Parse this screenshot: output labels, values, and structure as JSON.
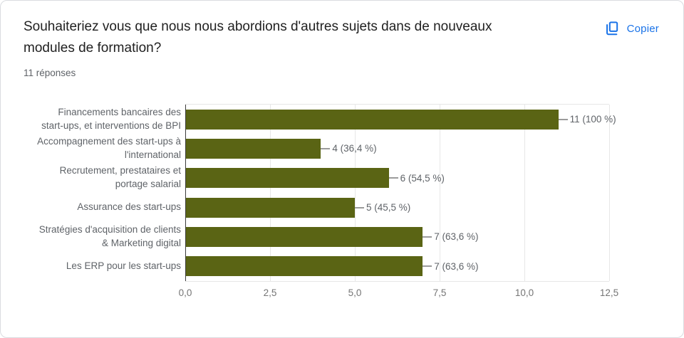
{
  "header": {
    "title": "Souhaiteriez vous que nous nous abordions d'autres sujets dans de nouveaux modules de formation?",
    "responses": "11 réponses"
  },
  "toolbar": {
    "copy_label": "Copier",
    "copy_icon": "copy-icon",
    "accent_color": "#1a73e8"
  },
  "chart_data": {
    "type": "bar",
    "orientation": "horizontal",
    "title": "Souhaiteriez vous que nous nous abordions d'autres sujets dans de nouveaux modules de formation?",
    "subtitle": "11 réponses",
    "categories": [
      "Financements bancaires des\nstart-ups, et interventions de BPI",
      "Accompagnement des start-ups à\nl'international",
      "Recrutement, prestataires et\nportage salarial",
      "Assurance des start-ups",
      "Stratégies d'acquisition de clients\n& Marketing digital",
      "Les ERP pour les start-ups"
    ],
    "values": [
      11,
      4,
      6,
      5,
      7,
      7
    ],
    "point_labels": [
      "11 (100 %)",
      "4 (36,4 %)",
      "6 (54,5 %)",
      "5 (45,5 %)",
      "7 (63,6 %)",
      "7 (63,6 %)"
    ],
    "xlim": [
      0,
      12.5
    ],
    "x_ticks": [
      0,
      2.5,
      5,
      7.5,
      10,
      12.5
    ],
    "x_tick_labels": [
      "0,0",
      "2,5",
      "5,0",
      "7,5",
      "10,0",
      "12,5"
    ],
    "bar_color": "#5a6414",
    "grid": true,
    "gridline_color": "#e7e7e7",
    "axis_line_color": "#3c3c3c",
    "legend": "none"
  }
}
